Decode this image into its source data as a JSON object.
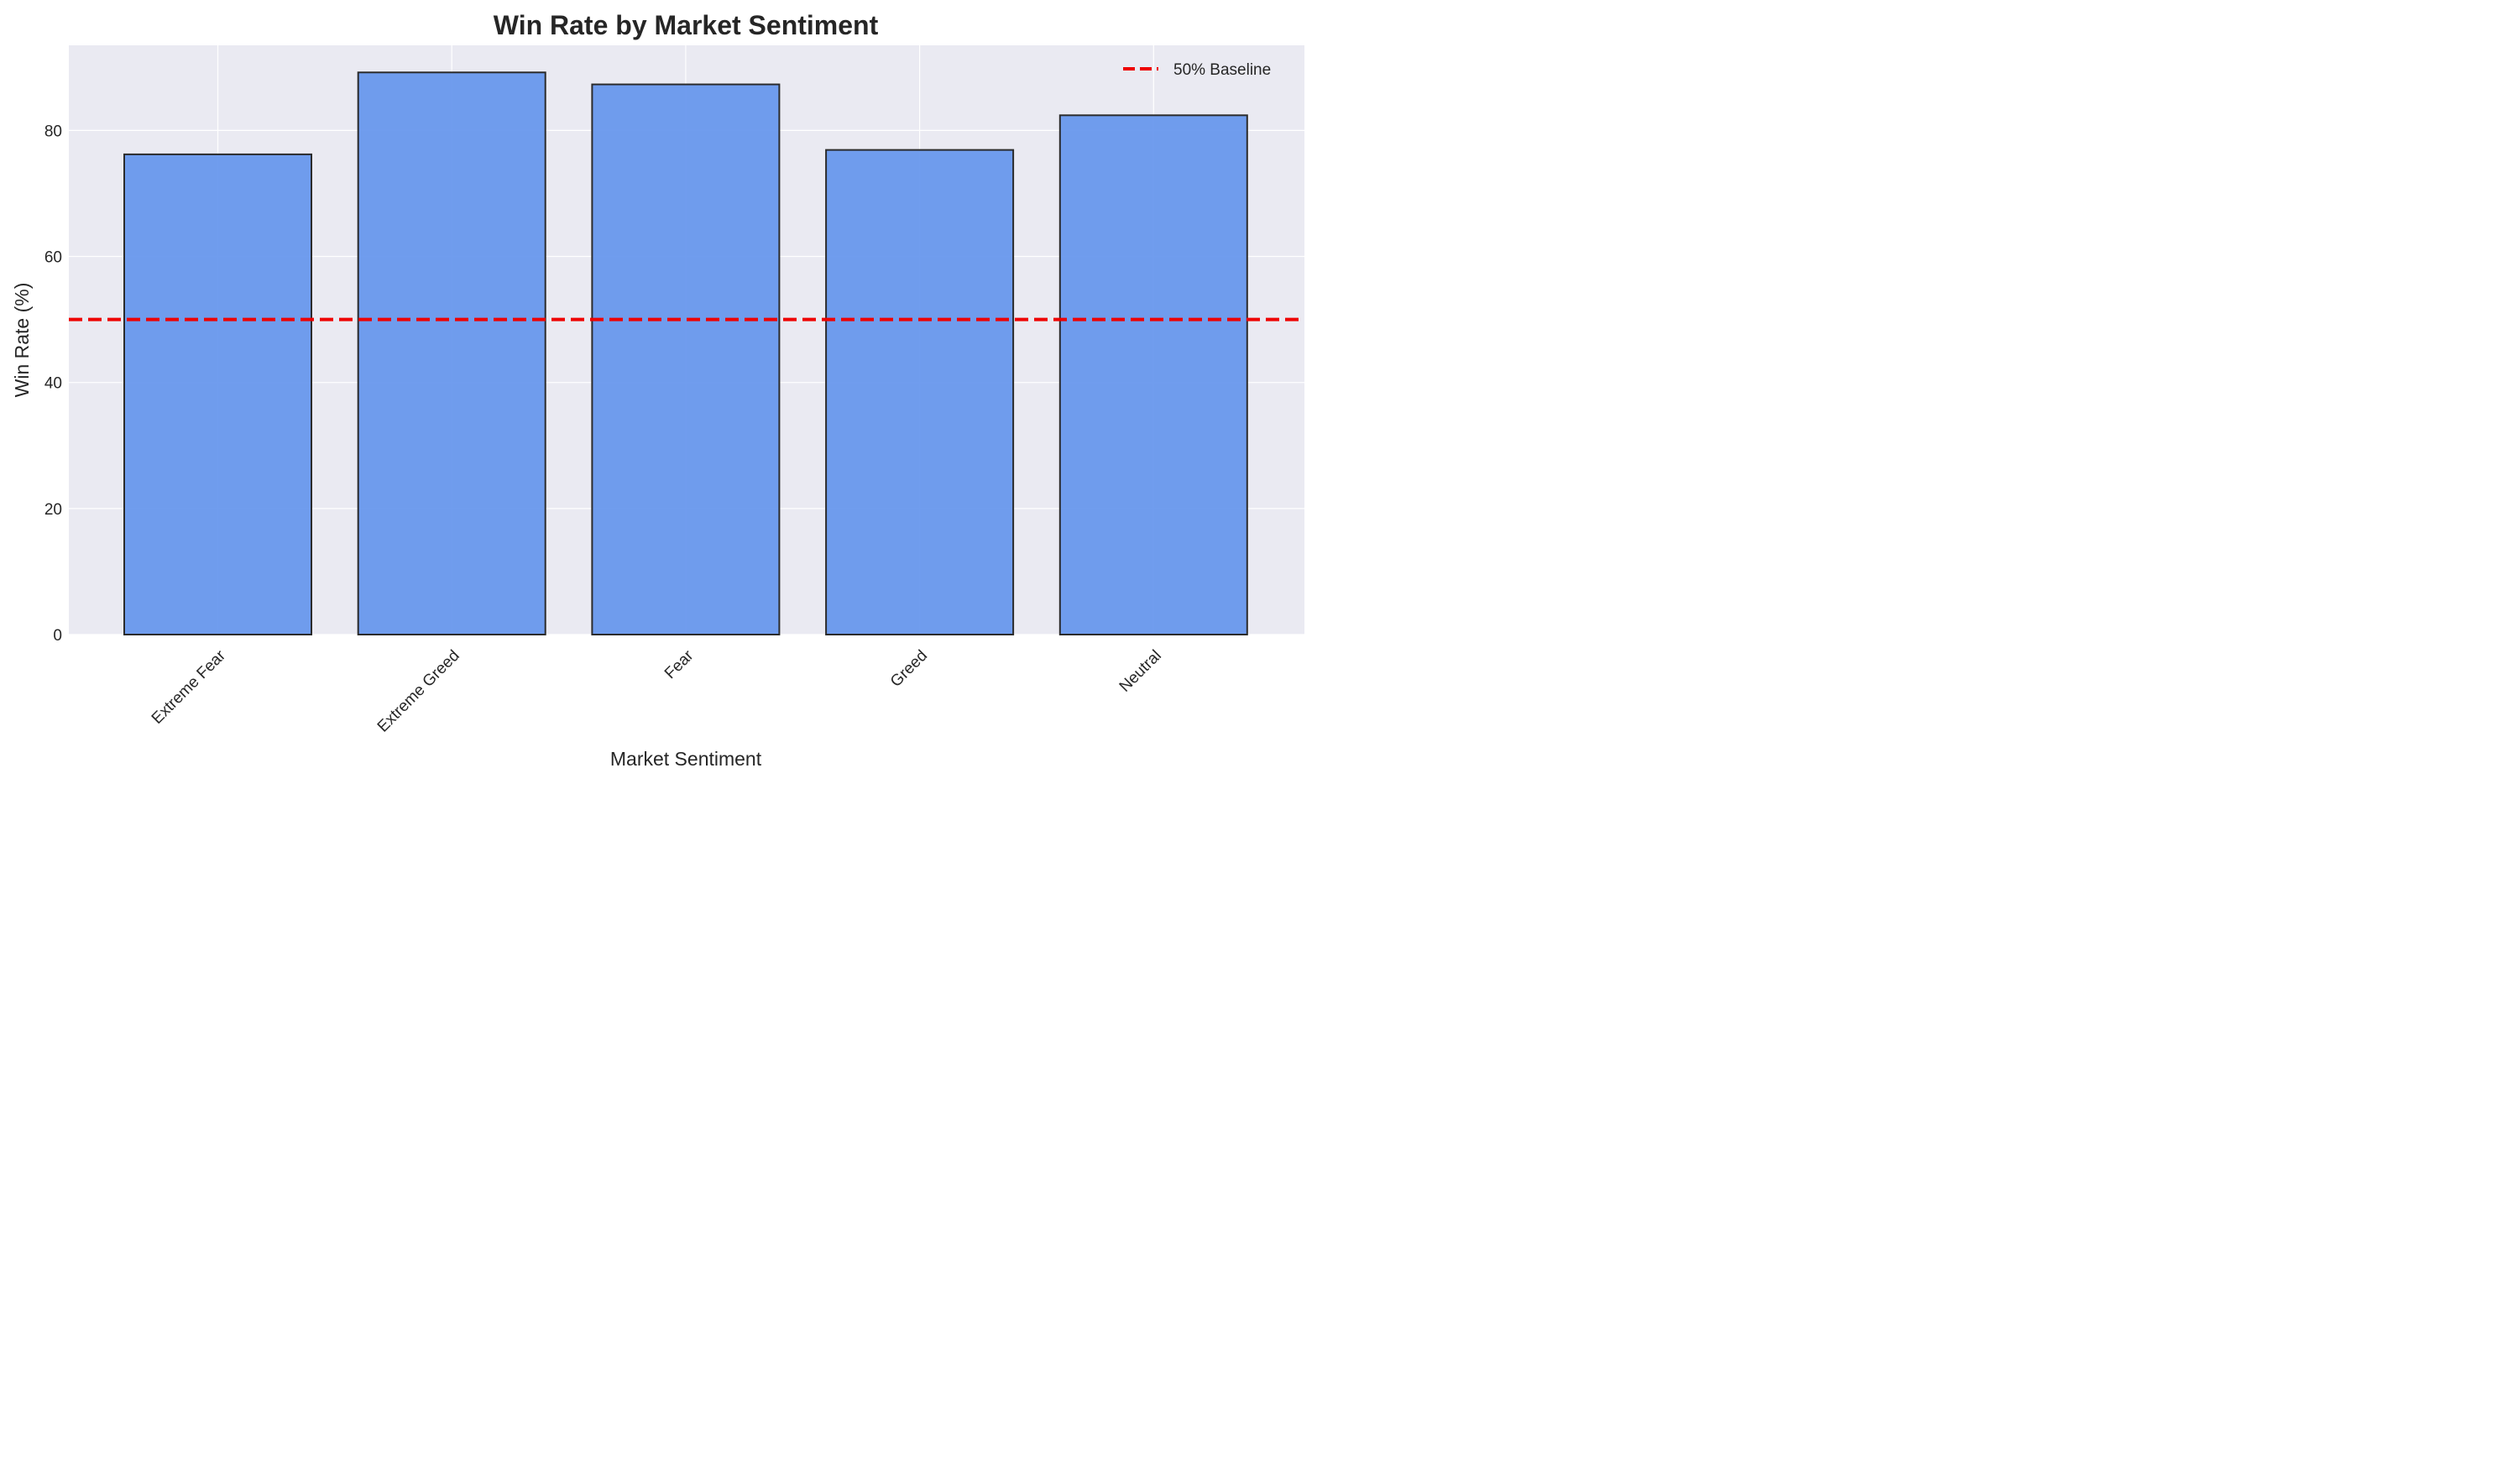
{
  "chart_data": {
    "type": "bar",
    "title": "Win Rate by Market Sentiment",
    "xlabel": "Market Sentiment",
    "ylabel": "Win Rate (%)",
    "categories": [
      "Extreme Fear",
      "Extreme Greed",
      "Fear",
      "Greed",
      "Neutral"
    ],
    "values": [
      76.2,
      89.2,
      87.3,
      76.9,
      82.4
    ],
    "ylim": [
      0,
      93.5
    ],
    "yticks": [
      0,
      20,
      40,
      60,
      80
    ],
    "grid": true,
    "legend_position": "top-right",
    "baseline": {
      "value": 50,
      "label": "50% Baseline",
      "style": "dashed",
      "color": "#ee0000"
    },
    "colors": {
      "bar_fill": "#6495ED",
      "bar_edge": "#2b2b2b",
      "plot_background": "#eaeaf2",
      "grid": "#ffffff"
    }
  }
}
